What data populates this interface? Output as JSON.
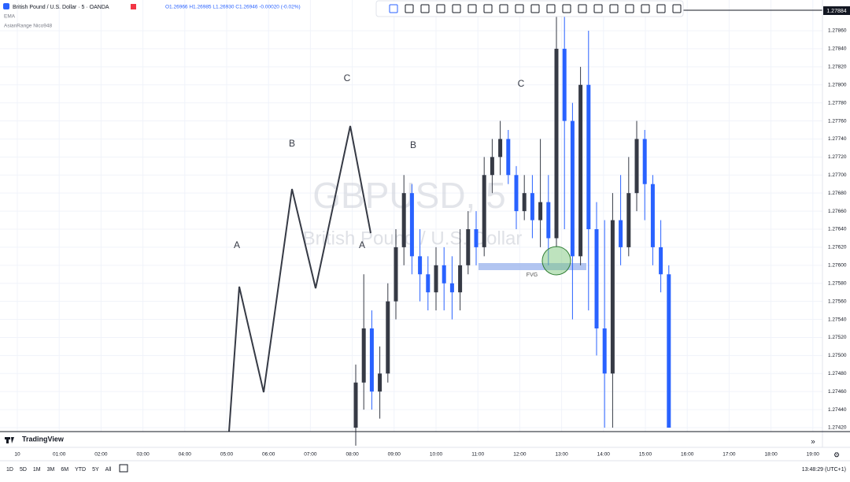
{
  "header": {
    "symbol": "British Pound / U.S. Dollar · 5 · OANDA",
    "ohlc": "O1.26966 H1.26985 L1.26930 C1.26946 -0.00020 (-0.02%)",
    "indicators": [
      "EMA",
      "AsianRange Nico948"
    ]
  },
  "watermark": {
    "ticker": "GBPUSD, 5",
    "name": "British Pound / U.S. Dollar"
  },
  "annotations": {
    "letters": [
      "A",
      "B",
      "C",
      "A",
      "B",
      "C"
    ],
    "fvg": "FVG"
  },
  "price_label": "1.27884",
  "chart": {
    "up_color": "#363a45",
    "down_color": "#2962ff",
    "yticks": [
      {
        "value": 1.2786,
        "label": "1.27860"
      },
      {
        "value": 1.2784,
        "label": "1.27840"
      },
      {
        "value": 1.2782,
        "label": "1.27820"
      },
      {
        "value": 1.278,
        "label": "1.27800"
      },
      {
        "value": 1.2778,
        "label": "1.27780"
      },
      {
        "value": 1.2776,
        "label": "1.27760"
      },
      {
        "value": 1.2774,
        "label": "1.27740"
      },
      {
        "value": 1.2772,
        "label": "1.27720"
      },
      {
        "value": 1.277,
        "label": "1.27700"
      },
      {
        "value": 1.2768,
        "label": "1.27680"
      },
      {
        "value": 1.2766,
        "label": "1.27660"
      },
      {
        "value": 1.2764,
        "label": "1.27640"
      },
      {
        "value": 1.2762,
        "label": "1.27620"
      },
      {
        "value": 1.276,
        "label": "1.27600"
      },
      {
        "value": 1.2758,
        "label": "1.27580"
      },
      {
        "value": 1.2756,
        "label": "1.27560"
      },
      {
        "value": 1.2754,
        "label": "1.27540"
      },
      {
        "value": 1.2752,
        "label": "1.27520"
      },
      {
        "value": 1.275,
        "label": "1.27500"
      },
      {
        "value": 1.2748,
        "label": "1.27480"
      },
      {
        "value": 1.2746,
        "label": "1.27460"
      },
      {
        "value": 1.2744,
        "label": "1.27440"
      },
      {
        "value": 1.2742,
        "label": "1.27420"
      }
    ],
    "xlabels": [
      "10",
      "01:00",
      "02:00",
      "03:00",
      "04:00",
      "05:00",
      "06:00",
      "07:00",
      "08:00",
      "09:00",
      "10:00",
      "11:00",
      "12:00",
      "13:00",
      "14:00",
      "15:00",
      "16:00",
      "17:00",
      "18:00",
      "19:00"
    ],
    "candles": [
      [
        1.2742,
        1.2749,
        1.274,
        1.2747
      ],
      [
        1.2747,
        1.2759,
        1.2744,
        1.2753
      ],
      [
        1.2753,
        1.2755,
        1.2744,
        1.2746
      ],
      [
        1.2746,
        1.2751,
        1.2743,
        1.2748
      ],
      [
        1.2748,
        1.2758,
        1.2747,
        1.2756
      ],
      [
        1.2756,
        1.2764,
        1.2754,
        1.2762
      ],
      [
        1.2762,
        1.277,
        1.276,
        1.2768
      ],
      [
        1.2768,
        1.2769,
        1.2759,
        1.2761
      ],
      [
        1.2761,
        1.2764,
        1.2756,
        1.2759
      ],
      [
        1.2759,
        1.2761,
        1.2755,
        1.2757
      ],
      [
        1.2757,
        1.2762,
        1.2755,
        1.276
      ],
      [
        1.276,
        1.2762,
        1.2755,
        1.2758
      ],
      [
        1.2758,
        1.2761,
        1.2754,
        1.2757
      ],
      [
        1.2757,
        1.2764,
        1.2755,
        1.276
      ],
      [
        1.276,
        1.2766,
        1.2759,
        1.2764
      ],
      [
        1.2764,
        1.2766,
        1.276,
        1.2762
      ],
      [
        1.2762,
        1.2772,
        1.2761,
        1.277
      ],
      [
        1.277,
        1.2774,
        1.2768,
        1.2772
      ],
      [
        1.2772,
        1.2776,
        1.277,
        1.2774
      ],
      [
        1.2774,
        1.2775,
        1.2769,
        1.277
      ],
      [
        1.277,
        1.2771,
        1.2764,
        1.2766
      ],
      [
        1.2766,
        1.277,
        1.2765,
        1.2768
      ],
      [
        1.2768,
        1.277,
        1.2763,
        1.2765
      ],
      [
        1.2765,
        1.2774,
        1.2762,
        1.2767
      ],
      [
        1.2767,
        1.277,
        1.276,
        1.2763
      ],
      [
        1.2763,
        1.2789,
        1.2762,
        1.2784
      ],
      [
        1.2784,
        1.2788,
        1.2764,
        1.2776
      ],
      [
        1.2776,
        1.2778,
        1.2754,
        1.2761
      ],
      [
        1.2761,
        1.2782,
        1.276,
        1.278
      ],
      [
        1.278,
        1.2786,
        1.2755,
        1.2764
      ],
      [
        1.2764,
        1.2767,
        1.275,
        1.2753
      ],
      [
        1.2753,
        1.2765,
        1.2742,
        1.2748
      ],
      [
        1.2748,
        1.2768,
        1.2742,
        1.2765
      ],
      [
        1.2765,
        1.277,
        1.276,
        1.2762
      ],
      [
        1.2762,
        1.2772,
        1.2761,
        1.2768
      ],
      [
        1.2768,
        1.2776,
        1.2766,
        1.2774
      ],
      [
        1.2774,
        1.2775,
        1.2765,
        1.2769
      ],
      [
        1.2769,
        1.277,
        1.276,
        1.2762
      ],
      [
        1.2762,
        1.2765,
        1.2757,
        1.2759
      ],
      [
        1.2759,
        1.276,
        1.2742,
        1.2742
      ]
    ]
  },
  "footer": {
    "logo": "TradingView",
    "ranges": [
      "1D",
      "5D",
      "1M",
      "3M",
      "6M",
      "YTD",
      "5Y",
      "All"
    ],
    "clock": "13:48:29 (UTC+1)"
  }
}
